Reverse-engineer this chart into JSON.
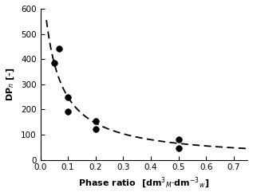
{
  "scatter_x": [
    0.05,
    0.067,
    0.1,
    0.1,
    0.2,
    0.2,
    0.5,
    0.5
  ],
  "scatter_y": [
    385,
    440,
    250,
    193,
    152,
    122,
    80,
    47
  ],
  "curve_x_start": 0.022,
  "curve_x_end": 0.75,
  "curve_A": 35.19,
  "curve_B": 0.04141,
  "xlabel": "Phase ratio  [dm$^3$$_M$$\\cdot$dm$^{-3}$$_w$]",
  "ylabel": "DP$_n$ [-]",
  "xlim": [
    0.0,
    0.75
  ],
  "ylim": [
    0,
    600
  ],
  "yticks": [
    0,
    100,
    200,
    300,
    400,
    500,
    600
  ],
  "xticks": [
    0.0,
    0.1,
    0.2,
    0.3,
    0.4,
    0.5,
    0.6,
    0.7
  ],
  "background_color": "#ffffff",
  "scatter_color": "black",
  "curve_color": "black",
  "axis_label_fontsize": 8,
  "tick_fontsize": 7.5,
  "scatter_size": 30,
  "line_width": 1.3
}
